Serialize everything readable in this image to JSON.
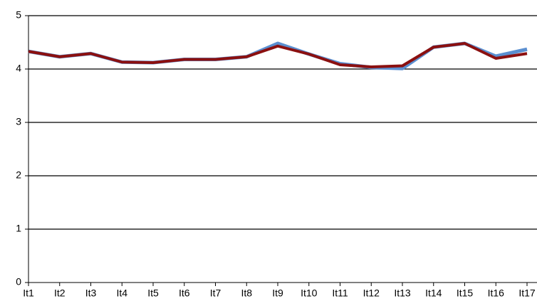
{
  "chart_data": {
    "type": "line",
    "categories": [
      "It1",
      "It2",
      "It3",
      "It4",
      "It5",
      "It6",
      "It7",
      "It8",
      "It9",
      "It10",
      "It11",
      "It12",
      "It13",
      "It14",
      "It15",
      "It16",
      "It17"
    ],
    "series": [
      {
        "color": "#5b8fd0",
        "values": [
          4.33,
          4.23,
          4.29,
          4.13,
          4.12,
          4.18,
          4.18,
          4.23,
          4.48,
          4.28,
          4.1,
          4.03,
          4.01,
          4.41,
          4.48,
          4.24,
          4.37
        ]
      },
      {
        "color": "#8b1010",
        "values": [
          4.33,
          4.23,
          4.29,
          4.13,
          4.12,
          4.18,
          4.18,
          4.23,
          4.43,
          4.28,
          4.08,
          4.04,
          4.06,
          4.41,
          4.48,
          4.2,
          4.29
        ]
      }
    ],
    "ylim": [
      0,
      5
    ],
    "yticks": [
      0,
      1,
      2,
      3,
      4,
      5
    ],
    "grid": true
  }
}
